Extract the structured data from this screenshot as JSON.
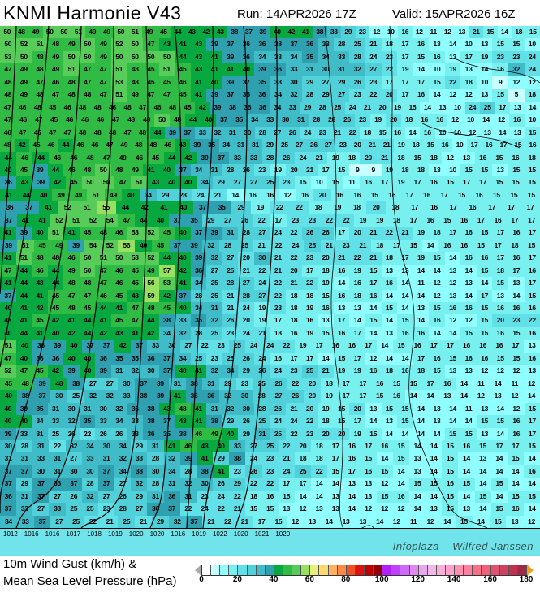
{
  "header": {
    "title": "KNMI Harmonie V43",
    "run": "Run: 14APR2026 17Z",
    "valid": "Valid: 15APR2026 16Z"
  },
  "map": {
    "watermark": [
      "Infoplaza",
      "Wilfred Janssen"
    ],
    "isobar_labels": [
      "1012",
      "1016",
      "1016",
      "1017",
      "1018",
      "1019",
      "1020",
      "1020",
      "1016",
      "1019",
      "1022",
      "1020",
      "1021",
      "1020"
    ],
    "gust_grid": [
      [
        50,
        48,
        49,
        50,
        50,
        51,
        49,
        49,
        50,
        51,
        49,
        45,
        44,
        43,
        42,
        43,
        38,
        37,
        39,
        40,
        42,
        41,
        38,
        33,
        29,
        23,
        12,
        10,
        16,
        12,
        11,
        12,
        13,
        21,
        15,
        14,
        18,
        15
      ],
      [
        50,
        52,
        51,
        48,
        49,
        50,
        49,
        52,
        50,
        47,
        43,
        41,
        43,
        39,
        37,
        36,
        36,
        38,
        37,
        36,
        33,
        28,
        25,
        21,
        18,
        17,
        16,
        13,
        14,
        10,
        13,
        15,
        15,
        10
      ],
      [
        53,
        50,
        48,
        49,
        50,
        50,
        49,
        50,
        50,
        50,
        50,
        44,
        43,
        41,
        39,
        36,
        34,
        33,
        34,
        35,
        34,
        33,
        28,
        24,
        23,
        17,
        15,
        16,
        13,
        17,
        19,
        23,
        23,
        24
      ],
      [
        47,
        49,
        48,
        49,
        51,
        47,
        47,
        51,
        48,
        45,
        51,
        45,
        43,
        41,
        41,
        40,
        39,
        36,
        33,
        31,
        30,
        31,
        32,
        27,
        22,
        19,
        14,
        10,
        19,
        13,
        14,
        16,
        32,
        24
      ],
      [
        48,
        49,
        47,
        46,
        48,
        47,
        47,
        53,
        48,
        45,
        45,
        46,
        41,
        40,
        39,
        37,
        35,
        33,
        30,
        29,
        27,
        29,
        26,
        23,
        17,
        17,
        17,
        15,
        22,
        18,
        10,
        9,
        12,
        12
      ],
      [
        48,
        49,
        48,
        47,
        48,
        48,
        47,
        51,
        49,
        47,
        47,
        45,
        41,
        39,
        37,
        35,
        36,
        34,
        32,
        28,
        29,
        27,
        23,
        22,
        20,
        17,
        16,
        14,
        12,
        12,
        13,
        15,
        5,
        18
      ],
      [
        47,
        46,
        48,
        45,
        46,
        48,
        48,
        46,
        48,
        47,
        46,
        48,
        45,
        42,
        39,
        38,
        36,
        36,
        34,
        33,
        29,
        28,
        25,
        24,
        21,
        20,
        19,
        15,
        14,
        13,
        10,
        24,
        25,
        17,
        13,
        14
      ],
      [
        47,
        46,
        47,
        45,
        46,
        46,
        46,
        47,
        48,
        48,
        50,
        48,
        44,
        40,
        37,
        35,
        34,
        33,
        30,
        31,
        28,
        28,
        26,
        23,
        19,
        20,
        18,
        16,
        16,
        12,
        10,
        14,
        12,
        16,
        10
      ],
      [
        46,
        47,
        45,
        47,
        47,
        48,
        48,
        48,
        47,
        48,
        44,
        39,
        37,
        33,
        32,
        31,
        30,
        28,
        27,
        26,
        24,
        23,
        21,
        22,
        18,
        15,
        16,
        14,
        16,
        10,
        10,
        12,
        13,
        14,
        13,
        15
      ],
      [
        48,
        42,
        45,
        46,
        44,
        46,
        46,
        47,
        49,
        48,
        48,
        46,
        43,
        39,
        35,
        34,
        31,
        31,
        29,
        25,
        27,
        26,
        27,
        23,
        20,
        21,
        21,
        19,
        18,
        15,
        16,
        10,
        17,
        16,
        17,
        15,
        16
      ],
      [
        44,
        46,
        44,
        46,
        46,
        48,
        47,
        49,
        46,
        45,
        44,
        42,
        39,
        37,
        33,
        33,
        28,
        26,
        24,
        21,
        19,
        18,
        20,
        21,
        18,
        15,
        18,
        12,
        13,
        16,
        15,
        16,
        18
      ],
      [
        40,
        45,
        39,
        44,
        46,
        48,
        50,
        48,
        49,
        41,
        40,
        37,
        34,
        31,
        28,
        26,
        23,
        19,
        20,
        21,
        17,
        15,
        9,
        9,
        19,
        18,
        18,
        13,
        10,
        15,
        15,
        13,
        15,
        15
      ],
      [
        36,
        43,
        39,
        42,
        45,
        50,
        50,
        47,
        51,
        43,
        40,
        40,
        34,
        29,
        27,
        27,
        25,
        23,
        15,
        10,
        15,
        11,
        16,
        17,
        19,
        17,
        16,
        15,
        17,
        17,
        15,
        15,
        15
      ],
      [
        41,
        44,
        40,
        49,
        49,
        51,
        49,
        40,
        34,
        29,
        28,
        24,
        21,
        14,
        16,
        16,
        12,
        16,
        20,
        16,
        16,
        15,
        16,
        17,
        16,
        17,
        15,
        16,
        15,
        15,
        15
      ],
      [
        36,
        37,
        41,
        52,
        51,
        55,
        44,
        42,
        41,
        40,
        37,
        35,
        29,
        19,
        22,
        22,
        18,
        19,
        18,
        20,
        18,
        17,
        16,
        17,
        16,
        17,
        17,
        17
      ],
      [
        37,
        41,
        41,
        52,
        51,
        52,
        54,
        47,
        44,
        40,
        37,
        35,
        29,
        27,
        26,
        22,
        17,
        23,
        23,
        22,
        22,
        19,
        19,
        18,
        17,
        16,
        15,
        16,
        17,
        16,
        17,
        17
      ],
      [
        41,
        39,
        40,
        51,
        41,
        45,
        48,
        46,
        53,
        52,
        45,
        40,
        37,
        39,
        31,
        28,
        27,
        24,
        22,
        26,
        26,
        17,
        20,
        21,
        22,
        21,
        19,
        18,
        17,
        16,
        15,
        17,
        16,
        17
      ],
      [
        39,
        51,
        45,
        49,
        39,
        54,
        52,
        56,
        40,
        45,
        37,
        39,
        32,
        28,
        25,
        21,
        22,
        24,
        25,
        21,
        23,
        21,
        18,
        17,
        15,
        14,
        16,
        16,
        15,
        17,
        18,
        15
      ],
      [
        41,
        51,
        48,
        48,
        46,
        50,
        51,
        50,
        53,
        52,
        44,
        40,
        39,
        32,
        27,
        20,
        30,
        21,
        22,
        23,
        20,
        21,
        22,
        21,
        18,
        17,
        19,
        15,
        14,
        16,
        16,
        17,
        16,
        17
      ],
      [
        47,
        44,
        46,
        44,
        49,
        50,
        47,
        46,
        45,
        49,
        57,
        42,
        36,
        27,
        25,
        21,
        22,
        21,
        20,
        17,
        18,
        16,
        19,
        15,
        13,
        13,
        14,
        14,
        13,
        14,
        15,
        18,
        17,
        16
      ],
      [
        41,
        44,
        43,
        44,
        48,
        48,
        47,
        46,
        45,
        56,
        53,
        41,
        34,
        25,
        28,
        27,
        24,
        22,
        21,
        22,
        19,
        14,
        16,
        17,
        16,
        14,
        11,
        12,
        12,
        13,
        14,
        15,
        13,
        17
      ],
      [
        37,
        44,
        41,
        45,
        47,
        47,
        46,
        45,
        43,
        59,
        42,
        37,
        28,
        25,
        21,
        28,
        27,
        22,
        18,
        18,
        15,
        16,
        18,
        16,
        14,
        14,
        14,
        12,
        13,
        14,
        17,
        13,
        14,
        15
      ],
      [
        40,
        41,
        42,
        45,
        48,
        45,
        44,
        41,
        47,
        48,
        45,
        40,
        34,
        31,
        21,
        24,
        19,
        23,
        18,
        19,
        16,
        13,
        13,
        14,
        15,
        14,
        13,
        15,
        16,
        16,
        15,
        16,
        16,
        16
      ],
      [
        43,
        41,
        45,
        42,
        41,
        44,
        41,
        45,
        47,
        44,
        38,
        33,
        35,
        32,
        26,
        20,
        19,
        17,
        18,
        16,
        13,
        17,
        14,
        15,
        14,
        15,
        14,
        16,
        12,
        12,
        15,
        20,
        23,
        22
      ],
      [
        40,
        44,
        41,
        40,
        42,
        44,
        42,
        43,
        41,
        42,
        34,
        32,
        28,
        25,
        23,
        24,
        21,
        18,
        16,
        19,
        15,
        16,
        17,
        14,
        13,
        16,
        16,
        14,
        14,
        15,
        15,
        16,
        15,
        16
      ],
      [
        51,
        40,
        36,
        39,
        40,
        37,
        37,
        42,
        37,
        33,
        30,
        27,
        22,
        23,
        25,
        24,
        24,
        22,
        19,
        17,
        16,
        16,
        17,
        14,
        15,
        16,
        17,
        17,
        16,
        16,
        16,
        17,
        13
      ],
      [
        47,
        40,
        36,
        36,
        40,
        40,
        36,
        35,
        35,
        36,
        37,
        34,
        25,
        23,
        25,
        26,
        24,
        16,
        17,
        17,
        14,
        15,
        17,
        12,
        14,
        14,
        17,
        16,
        15,
        16,
        16,
        15,
        15,
        16
      ],
      [
        52,
        47,
        45,
        42,
        39,
        40,
        39,
        31,
        32,
        30,
        37,
        40,
        41,
        32,
        34,
        29,
        26,
        24,
        23,
        25,
        21,
        19,
        19,
        16,
        18,
        16,
        18,
        15,
        13,
        13,
        12,
        12,
        12,
        13
      ],
      [
        45,
        48,
        39,
        40,
        38,
        27,
        27,
        30,
        37,
        39,
        31,
        38,
        31,
        29,
        23,
        25,
        26,
        22,
        20,
        18,
        17,
        17,
        16,
        15,
        15,
        17,
        16,
        14,
        11,
        14,
        11,
        12
      ],
      [
        40,
        38,
        37,
        30,
        25,
        32,
        32,
        33,
        38,
        39,
        41,
        36,
        36,
        32,
        30,
        28,
        27,
        26,
        20,
        19,
        17,
        17,
        15,
        16,
        14,
        14,
        13,
        14,
        12,
        13,
        12,
        14
      ],
      [
        40,
        39,
        35,
        31,
        30,
        31,
        30,
        32,
        36,
        38,
        43,
        48,
        41,
        31,
        32,
        30,
        28,
        26,
        21,
        20,
        19,
        15,
        20,
        13,
        15,
        15,
        14,
        13,
        14,
        11,
        13,
        14,
        12,
        15
      ],
      [
        40,
        40,
        34,
        33,
        32,
        35,
        33,
        34,
        33,
        38,
        37,
        43,
        41,
        38,
        29,
        26,
        25,
        24,
        24,
        22,
        18,
        15,
        17,
        14,
        13,
        15,
        14,
        13,
        14,
        14,
        15,
        15,
        16,
        17
      ],
      [
        39,
        33,
        31,
        25,
        26,
        22,
        26,
        26,
        33,
        36,
        35,
        38,
        46,
        49,
        40,
        29,
        31,
        25,
        22,
        23,
        20,
        20,
        19,
        15,
        14,
        14,
        14,
        14,
        15,
        15,
        13,
        14,
        16,
        17
      ],
      [
        30,
        28,
        31,
        22,
        32,
        34,
        30,
        34,
        29,
        31,
        41,
        46,
        43,
        40,
        33,
        27,
        25,
        22,
        20,
        18,
        17,
        16,
        17,
        16,
        15,
        14,
        14,
        15,
        16,
        15,
        17,
        17,
        15
      ],
      [
        31,
        31,
        33,
        31,
        27,
        33,
        31,
        32,
        33,
        28,
        32,
        39,
        41,
        29,
        38,
        24,
        23,
        21,
        18,
        18,
        17,
        16,
        15,
        14,
        15,
        13,
        14,
        15,
        14,
        13,
        14,
        15,
        14
      ],
      [
        37,
        37,
        30,
        31,
        30,
        30,
        37,
        34,
        38,
        30,
        34,
        28,
        38,
        41,
        23,
        26,
        23,
        24,
        25,
        22,
        15,
        17,
        16,
        15,
        14,
        13,
        14,
        15,
        14,
        14,
        14,
        14,
        16
      ],
      [
        37,
        29,
        37,
        36,
        37,
        28,
        37,
        27,
        32,
        28,
        31,
        32,
        30,
        26,
        29,
        22,
        22,
        17,
        17,
        14,
        14,
        13,
        13,
        12,
        14,
        15,
        15,
        16,
        15,
        14,
        15,
        14,
        14
      ],
      [
        36,
        31,
        37,
        27,
        26,
        32,
        27,
        26,
        29,
        31,
        36,
        31,
        23,
        24,
        22,
        18,
        16,
        15,
        14,
        14,
        13,
        14,
        13,
        15,
        16,
        14,
        14,
        15,
        14,
        15,
        14,
        15,
        15
      ],
      [
        37,
        33,
        27,
        33,
        25,
        25,
        23,
        28,
        27,
        36,
        37,
        22,
        24,
        22,
        21,
        15,
        15,
        13,
        12,
        13,
        13,
        14,
        12,
        12,
        12,
        14,
        13,
        15,
        13,
        14,
        15,
        16,
        14
      ],
      [
        34,
        33,
        37,
        27,
        25,
        22,
        21,
        25,
        21,
        29,
        32,
        37,
        21,
        22,
        21,
        17,
        15,
        12,
        13,
        14,
        13,
        13,
        14,
        12,
        11,
        12,
        14,
        15,
        14,
        15,
        13,
        12
      ]
    ]
  },
  "legend": {
    "line1": "10m Wind Gust (km/h) &",
    "line2": "Mean Sea Level Pressure (hPa)",
    "step": 5,
    "min": 0,
    "max": 180,
    "ticks": [
      "0",
      "20",
      "40",
      "60",
      "80",
      "100",
      "120",
      "140",
      "160",
      "180"
    ],
    "colors": [
      "#ffffff",
      "#c8ffff",
      "#90ffff",
      "#78f0f0",
      "#62e0e8",
      "#50d0d8",
      "#40bcc8",
      "#2ea0b0",
      "#08a840",
      "#30bc44",
      "#58cc58",
      "#98e060",
      "#e8f078",
      "#ffd870",
      "#ffb060",
      "#ff8a48",
      "#f05028",
      "#e01010",
      "#c00000",
      "#900000",
      "#b020ff",
      "#c040ff",
      "#d068f8",
      "#e088f0",
      "#e8a8f0",
      "#f0b8e8",
      "#f8b0d8",
      "#ffa0c8",
      "#ff90b0",
      "#ff80a0",
      "#f87088",
      "#f06078",
      "#e05070",
      "#d04060",
      "#c03050",
      "#a02848"
    ],
    "under_color": "#aaaaaa",
    "over_color": "#f0a020"
  }
}
